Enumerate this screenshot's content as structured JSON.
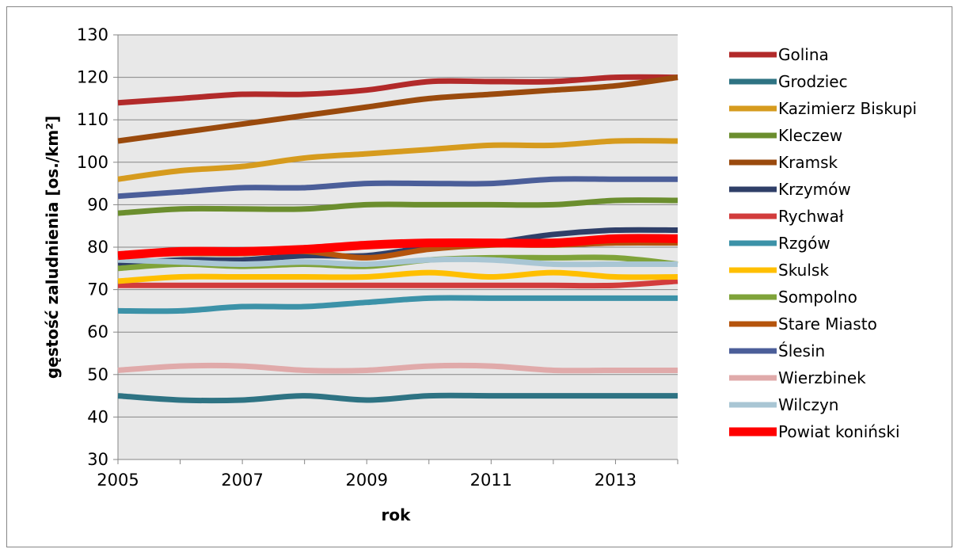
{
  "chart_data": {
    "type": "line",
    "title": "",
    "xlabel": "rok",
    "ylabel": "gęstość zaludnienia [os./km²]",
    "ylim": [
      30,
      130
    ],
    "xlim": [
      2005,
      2014
    ],
    "y_ticks": [
      30,
      40,
      50,
      60,
      70,
      80,
      90,
      100,
      110,
      120,
      130
    ],
    "x_ticks": [
      2005,
      2007,
      2009,
      2011,
      2013
    ],
    "x": [
      2005,
      2006,
      2007,
      2008,
      2009,
      2010,
      2011,
      2012,
      2013,
      2014
    ],
    "grid": "horizontal",
    "legend_position": "right",
    "plot_background": "#e8e8e8",
    "series": [
      {
        "name": "Golina",
        "color": "#b22a2a",
        "values": [
          114,
          115,
          116,
          116,
          117,
          119,
          119,
          119,
          120,
          120
        ]
      },
      {
        "name": "Grodziec",
        "color": "#2e7383",
        "values": [
          45,
          44,
          44,
          45,
          44,
          45,
          45,
          45,
          45,
          45
        ]
      },
      {
        "name": "Kazimierz Biskupi",
        "color": "#d69b1e",
        "values": [
          96,
          98,
          99,
          101,
          102,
          103,
          104,
          104,
          105,
          105
        ]
      },
      {
        "name": "Kleczew",
        "color": "#6b8e2e",
        "values": [
          88,
          89,
          89,
          89,
          90,
          90,
          90,
          90,
          91,
          91
        ]
      },
      {
        "name": "Kramsk",
        "color": "#9a4a0d",
        "values": [
          105,
          107,
          109,
          111,
          113,
          115,
          116,
          117,
          118,
          120
        ]
      },
      {
        "name": "Krzymów",
        "color": "#2f3f68",
        "values": [
          76,
          77,
          77,
          78,
          78,
          80,
          81,
          83,
          84,
          84
        ]
      },
      {
        "name": "Rychwał",
        "color": "#d23c3c",
        "values": [
          71,
          71,
          71,
          71,
          71,
          71,
          71,
          71,
          71,
          72
        ]
      },
      {
        "name": "Rzgów",
        "color": "#3c92a8",
        "values": [
          65,
          65,
          66,
          66,
          67,
          68,
          68,
          68,
          68,
          68
        ]
      },
      {
        "name": "Skulsk",
        "color": "#ffbf00",
        "values": [
          72,
          73,
          73,
          73,
          73,
          74,
          73,
          74,
          73,
          73
        ]
      },
      {
        "name": "Sompolno",
        "color": "#7fa33a",
        "values": [
          75,
          76,
          75.5,
          76,
          75.5,
          77,
          77.5,
          77.5,
          77.5,
          76
        ]
      },
      {
        "name": "Stare Miasto",
        "color": "#b5540c",
        "values": [
          78,
          78.5,
          78.5,
          79,
          77.5,
          79.5,
          80.5,
          80.5,
          81,
          81
        ]
      },
      {
        "name": "Ślesin",
        "color": "#4b5e99",
        "values": [
          92,
          93,
          94,
          94,
          95,
          95,
          95,
          96,
          96,
          96
        ]
      },
      {
        "name": "Wierzbinek",
        "color": "#e0aaaa",
        "values": [
          51,
          52,
          52,
          51,
          51,
          52,
          52,
          51,
          51,
          51
        ]
      },
      {
        "name": "Wilczyn",
        "color": "#a9c6d4",
        "values": [
          77,
          76.5,
          76,
          76.5,
          76,
          77,
          77,
          76,
          76,
          76
        ]
      },
      {
        "name": "Powiat koniński",
        "color": "#ff0000",
        "values": [
          78,
          79,
          79,
          79.5,
          80.5,
          81,
          81,
          81,
          82,
          82
        ]
      }
    ]
  }
}
